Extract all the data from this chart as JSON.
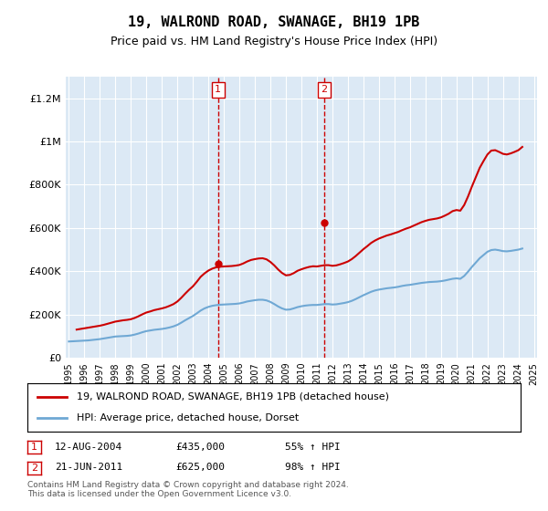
{
  "title": "19, WALROND ROAD, SWANAGE, BH19 1PB",
  "subtitle": "Price paid vs. HM Land Registry's House Price Index (HPI)",
  "xlabel": "",
  "ylabel": "",
  "ylim": [
    0,
    1300000
  ],
  "yticks": [
    0,
    200000,
    400000,
    600000,
    800000,
    1000000,
    1200000
  ],
  "ytick_labels": [
    "£0",
    "£200K",
    "£400K",
    "£600K",
    "£800K",
    "£1M",
    "£1.2M"
  ],
  "background_color": "#ffffff",
  "plot_bg_color": "#dce9f5",
  "grid_color": "#ffffff",
  "hpi_color": "#6fa8d4",
  "price_color": "#cc0000",
  "sale1_date": 2004.62,
  "sale1_price": 435000,
  "sale1_label": "1",
  "sale2_date": 2011.47,
  "sale2_price": 625000,
  "sale2_label": "2",
  "legend_line1": "19, WALROND ROAD, SWANAGE, BH19 1PB (detached house)",
  "legend_line2": "HPI: Average price, detached house, Dorset",
  "annotation1": "1    12-AUG-2004         £435,000        55% ↑ HPI",
  "annotation2": "2    21-JUN-2011          £625,000        98% ↑ HPI",
  "footer": "Contains HM Land Registry data © Crown copyright and database right 2024.\nThis data is licensed under the Open Government Licence v3.0.",
  "hpi_data_x": [
    1995,
    1995.25,
    1995.5,
    1995.75,
    1996,
    1996.25,
    1996.5,
    1996.75,
    1997,
    1997.25,
    1997.5,
    1997.75,
    1998,
    1998.25,
    1998.5,
    1998.75,
    1999,
    1999.25,
    1999.5,
    1999.75,
    2000,
    2000.25,
    2000.5,
    2000.75,
    2001,
    2001.25,
    2001.5,
    2001.75,
    2002,
    2002.25,
    2002.5,
    2002.75,
    2003,
    2003.25,
    2003.5,
    2003.75,
    2004,
    2004.25,
    2004.5,
    2004.75,
    2005,
    2005.25,
    2005.5,
    2005.75,
    2006,
    2006.25,
    2006.5,
    2006.75,
    2007,
    2007.25,
    2007.5,
    2007.75,
    2008,
    2008.25,
    2008.5,
    2008.75,
    2009,
    2009.25,
    2009.5,
    2009.75,
    2010,
    2010.25,
    2010.5,
    2010.75,
    2011,
    2011.25,
    2011.5,
    2011.75,
    2012,
    2012.25,
    2012.5,
    2012.75,
    2013,
    2013.25,
    2013.5,
    2013.75,
    2014,
    2014.25,
    2014.5,
    2014.75,
    2015,
    2015.25,
    2015.5,
    2015.75,
    2016,
    2016.25,
    2016.5,
    2016.75,
    2017,
    2017.25,
    2017.5,
    2017.75,
    2018,
    2018.25,
    2018.5,
    2018.75,
    2019,
    2019.25,
    2019.5,
    2019.75,
    2020,
    2020.25,
    2020.5,
    2020.75,
    2021,
    2021.25,
    2021.5,
    2021.75,
    2022,
    2022.25,
    2022.5,
    2022.75,
    2023,
    2023.25,
    2023.5,
    2023.75,
    2024,
    2024.25
  ],
  "hpi_data_y": [
    75000,
    76000,
    77000,
    78000,
    79000,
    80000,
    82000,
    84000,
    86000,
    89000,
    92000,
    95000,
    98000,
    99000,
    100000,
    101000,
    103000,
    107000,
    112000,
    118000,
    123000,
    126000,
    129000,
    131000,
    133000,
    136000,
    140000,
    145000,
    152000,
    162000,
    173000,
    183000,
    193000,
    205000,
    218000,
    228000,
    235000,
    240000,
    243000,
    245000,
    246000,
    247000,
    248000,
    249000,
    251000,
    255000,
    260000,
    263000,
    266000,
    268000,
    268000,
    265000,
    258000,
    248000,
    237000,
    228000,
    222000,
    223000,
    228000,
    234000,
    238000,
    241000,
    243000,
    244000,
    244000,
    246000,
    248000,
    248000,
    246000,
    247000,
    250000,
    253000,
    257000,
    263000,
    271000,
    280000,
    289000,
    297000,
    305000,
    311000,
    315000,
    318000,
    321000,
    323000,
    325000,
    328000,
    332000,
    335000,
    337000,
    340000,
    343000,
    346000,
    348000,
    350000,
    351000,
    352000,
    354000,
    357000,
    361000,
    365000,
    367000,
    365000,
    378000,
    398000,
    420000,
    440000,
    460000,
    475000,
    490000,
    498000,
    500000,
    497000,
    493000,
    492000,
    494000,
    497000,
    500000,
    505000
  ],
  "price_data_x": [
    1995.5,
    1995.75,
    1996,
    1996.25,
    1996.5,
    1996.75,
    1997,
    1997.25,
    1997.5,
    1997.75,
    1998,
    1998.25,
    1998.5,
    1998.75,
    1999,
    1999.25,
    1999.5,
    1999.75,
    2000,
    2000.25,
    2000.5,
    2000.75,
    2001,
    2001.25,
    2001.5,
    2001.75,
    2002,
    2002.25,
    2002.5,
    2002.75,
    2003,
    2003.25,
    2003.5,
    2003.75,
    2004,
    2004.25,
    2004.5,
    2004.75,
    2005,
    2005.25,
    2005.5,
    2005.75,
    2006,
    2006.25,
    2006.5,
    2006.75,
    2007,
    2007.25,
    2007.5,
    2007.75,
    2008,
    2008.25,
    2008.5,
    2008.75,
    2009,
    2009.25,
    2009.5,
    2009.75,
    2010,
    2010.25,
    2010.5,
    2010.75,
    2011,
    2011.25,
    2011.5,
    2011.75,
    2012,
    2012.25,
    2012.5,
    2012.75,
    2013,
    2013.25,
    2013.5,
    2013.75,
    2014,
    2014.25,
    2014.5,
    2014.75,
    2015,
    2015.25,
    2015.5,
    2015.75,
    2016,
    2016.25,
    2016.5,
    2016.75,
    2017,
    2017.25,
    2017.5,
    2017.75,
    2018,
    2018.25,
    2018.5,
    2018.75,
    2019,
    2019.25,
    2019.5,
    2019.75,
    2020,
    2020.25,
    2020.5,
    2020.75,
    2021,
    2021.25,
    2021.5,
    2021.75,
    2022,
    2022.25,
    2022.5,
    2022.75,
    2023,
    2023.25,
    2023.5,
    2023.75,
    2024,
    2024.25
  ],
  "price_data_y": [
    130000,
    133000,
    136000,
    139000,
    142000,
    145000,
    148000,
    152000,
    157000,
    162000,
    167000,
    170000,
    173000,
    175000,
    178000,
    184000,
    192000,
    201000,
    209000,
    214000,
    220000,
    224000,
    228000,
    233000,
    240000,
    248000,
    260000,
    277000,
    296000,
    314000,
    330000,
    351000,
    374000,
    390000,
    403000,
    412000,
    418000,
    421000,
    422000,
    423000,
    424000,
    426000,
    429000,
    436000,
    445000,
    452000,
    456000,
    459000,
    460000,
    455000,
    443000,
    427000,
    408000,
    392000,
    381000,
    383000,
    391000,
    402000,
    409000,
    415000,
    420000,
    423000,
    422000,
    425000,
    428000,
    428000,
    425000,
    427000,
    432000,
    438000,
    445000,
    456000,
    470000,
    486000,
    502000,
    516000,
    531000,
    542000,
    551000,
    558000,
    565000,
    570000,
    576000,
    582000,
    590000,
    597000,
    603000,
    611000,
    619000,
    627000,
    633000,
    638000,
    641000,
    644000,
    649000,
    657000,
    666000,
    678000,
    683000,
    680000,
    706000,
    746000,
    792000,
    835000,
    878000,
    910000,
    940000,
    958000,
    960000,
    952000,
    943000,
    940000,
    945000,
    952000,
    960000,
    975000
  ]
}
